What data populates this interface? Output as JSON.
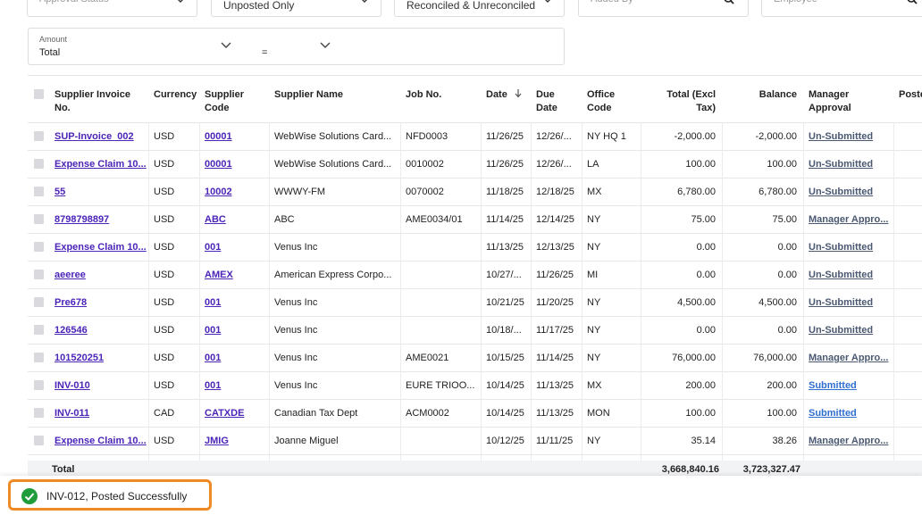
{
  "filters": [
    {
      "placeholder": "Approval Status"
    },
    {
      "value": "Unposted Only"
    },
    {
      "value": "Reconciled & Unreconciled"
    },
    {
      "placeholder": "Added By"
    },
    {
      "placeholder": "Employee"
    }
  ],
  "amount_filter": {
    "label": "Amount",
    "value": "Total",
    "operator": "="
  },
  "table": {
    "headers": [
      "Supplier Invoice No.",
      "Currency",
      "Supplier Code",
      "Supplier Name",
      "Job No.",
      "Date",
      "Due Date",
      "Office Code",
      "Total (Excl Tax)",
      "Balance",
      "Manager Approval",
      "Posted"
    ],
    "rows": [
      [
        "SUP-Invoice_002",
        "USD",
        "00001",
        "WebWise Solutions Card...",
        "NFD0003",
        "11/26/25",
        "12/26/...",
        "NY HQ 1",
        "-2,000.00",
        "-2,000.00",
        "Un-Submitted"
      ],
      [
        "Expense Claim 10...",
        "USD",
        "00001",
        "WebWise Solutions Card...",
        "0010002",
        "11/26/25",
        "12/26/...",
        "LA",
        "100.00",
        "100.00",
        "Un-Submitted"
      ],
      [
        "55",
        "USD",
        "10002",
        "WWWY-FM",
        "0070002",
        "11/18/25",
        "12/18/25",
        "MX",
        "6,780.00",
        "6,780.00",
        "Un-Submitted"
      ],
      [
        "8798798897",
        "USD",
        "ABC",
        "ABC",
        "AME0034/01",
        "11/14/25",
        "12/14/25",
        "NY",
        "75.00",
        "75.00",
        "Manager Appro..."
      ],
      [
        "Expense Claim 10...",
        "USD",
        "001",
        "Venus Inc",
        null,
        "11/13/25",
        "12/13/25",
        "NY",
        "0.00",
        "0.00",
        "Un-Submitted"
      ],
      [
        "aeeree",
        "USD",
        "AMEX",
        "American Express Corpo...",
        null,
        "10/27/...",
        "11/26/25",
        "MI",
        "0.00",
        "0.00",
        "Un-Submitted"
      ],
      [
        "Pre678",
        "USD",
        "001",
        "Venus Inc",
        null,
        "10/21/25",
        "11/20/25",
        "NY",
        "4,500.00",
        "4,500.00",
        "Un-Submitted"
      ],
      [
        "126546",
        "USD",
        "001",
        "Venus Inc",
        null,
        "10/18/...",
        "11/17/25",
        "NY",
        "0.00",
        "0.00",
        "Un-Submitted"
      ],
      [
        "101520251",
        "USD",
        "001",
        "Venus Inc",
        "AME0021",
        "10/15/25",
        "11/14/25",
        "NY",
        "76,000.00",
        "76,000.00",
        "Manager Appro..."
      ],
      [
        "INV-010",
        "USD",
        "001",
        "Venus Inc",
        "EURE TRIOO...",
        "10/14/25",
        "11/13/25",
        "MX",
        "200.00",
        "200.00",
        "Submitted"
      ],
      [
        "INV-011",
        "CAD",
        "CATXDE",
        "Canadian Tax Dept",
        "ACM0002",
        "10/14/25",
        "11/13/25",
        "MON",
        "100.00",
        "100.00",
        "Submitted"
      ],
      [
        "Expense Claim 10...",
        "USD",
        "JMIG",
        "Joanne Miguel",
        null,
        "10/12/25",
        "11/11/25",
        "NY",
        "35.14",
        "38.26",
        "Manager Appro..."
      ]
    ],
    "totals": {
      "label": "Total",
      "total": "3,668,840.16",
      "balance": "3,723,327.47"
    }
  },
  "toast": {
    "message": "INV-012, Posted Successfully"
  }
}
